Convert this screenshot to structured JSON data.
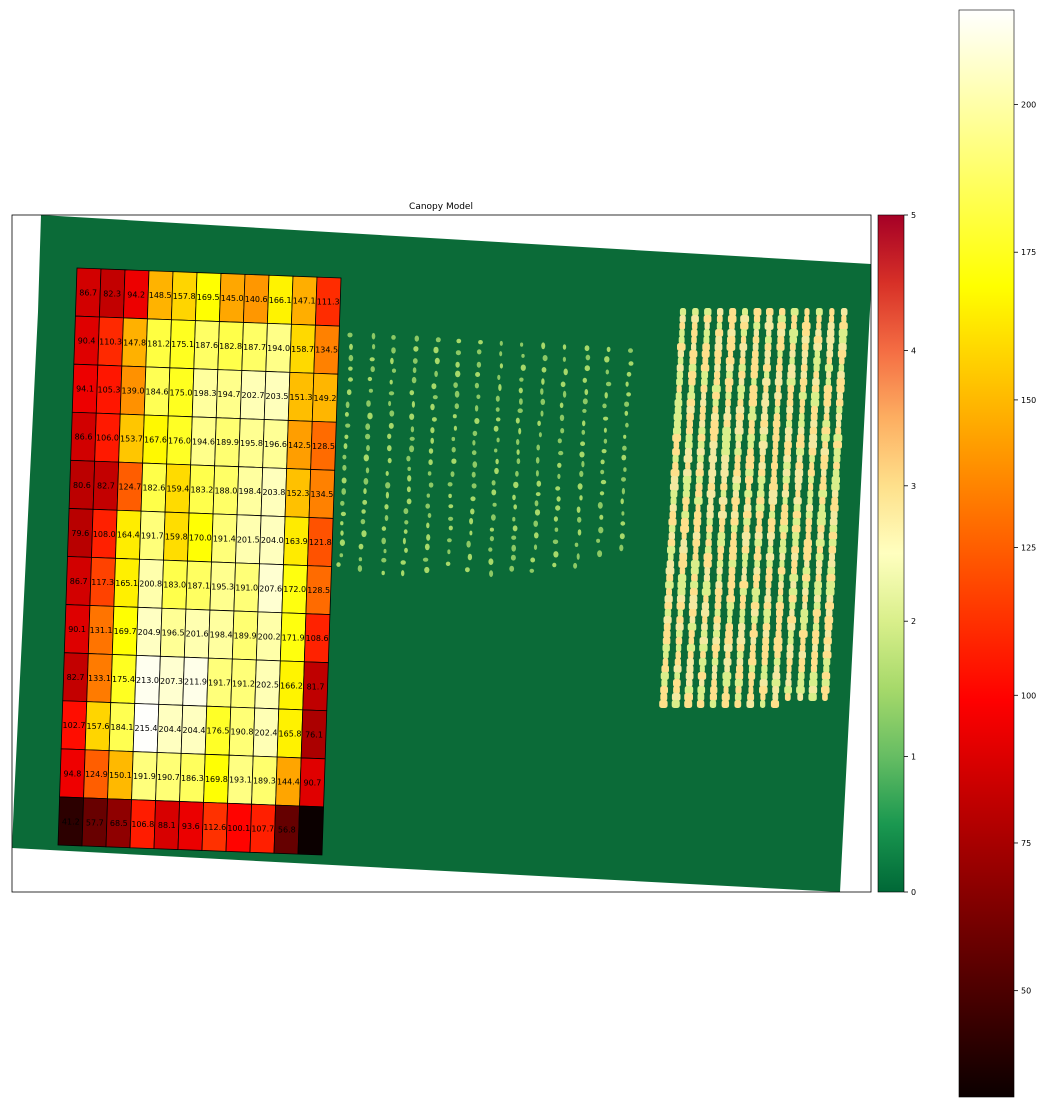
{
  "chart_data": {
    "type": "heatmap",
    "title": "Canopy Model",
    "background_raster": {
      "colormap": "RdYlGn_r",
      "base_color": "#0b6b38",
      "colorbar": {
        "min": 0,
        "max": 5,
        "ticks": [
          "0",
          "1",
          "2",
          "3",
          "4",
          "5"
        ]
      }
    },
    "grid_colormap": {
      "name": "hot",
      "min": 32,
      "max": 216,
      "ticks": [
        "50",
        "75",
        "100",
        "125",
        "150",
        "175",
        "200"
      ],
      "tick_values": [
        50,
        75,
        100,
        125,
        150,
        175,
        200
      ]
    },
    "grid": {
      "rows": 12,
      "cols": 11,
      "labels": [
        [
          "86.7",
          "82.3",
          "94.2",
          "148.5",
          "157.8",
          "169.5",
          "145.0",
          "140.6",
          "166.1",
          "147.1",
          "111.3"
        ],
        [
          "90.4",
          "110.3",
          "147.8",
          "181.2",
          "175.1",
          "187.6",
          "182.8",
          "187.7",
          "194.0",
          "158.7",
          "134.5"
        ],
        [
          "94.1",
          "105.3",
          "139.0",
          "184.6",
          "175.0",
          "198.3",
          "194.7",
          "202.7",
          "203.5",
          "151.3",
          "149.2"
        ],
        [
          "86.6",
          "106.0",
          "153.7",
          "167.6",
          "176.0",
          "194.6",
          "189.9",
          "195.8",
          "196.6",
          "142.5",
          "128.5"
        ],
        [
          "80.6",
          "82.7",
          "124.7",
          "182.6",
          "159.4",
          "183.2",
          "188.0",
          "198.4",
          "203.8",
          "152.3",
          "134.5"
        ],
        [
          "79.6",
          "108.0",
          "164.4",
          "191.7",
          "159.8",
          "170.0",
          "191.4",
          "201.5",
          "204.0",
          "163.9",
          "121.8"
        ],
        [
          "86.7",
          "117.3",
          "165.1",
          "200.8",
          "183.0",
          "187.1",
          "195.3",
          "191.0",
          "207.6",
          "172.0",
          "128.5"
        ],
        [
          "90.1",
          "131.1",
          "169.7",
          "204.9",
          "196.5",
          "201.6",
          "198.4",
          "189.9",
          "200.2",
          "171.9",
          "108.6"
        ],
        [
          "82.7",
          "133.1",
          "175.4",
          "213.0",
          "207.3",
          "211.9",
          "191.7",
          "191.2",
          "202.5",
          "166.2",
          "81.7"
        ],
        [
          "102.7",
          "157.6",
          "184.1",
          "215.4",
          "204.4",
          "204.4",
          "176.5",
          "190.8",
          "202.4",
          "165.8",
          "76.1"
        ],
        [
          "94.8",
          "124.9",
          "150.1",
          "191.9",
          "190.7",
          "186.3",
          "169.8",
          "193.1",
          "189.3",
          "144.4",
          "90.7"
        ],
        [
          "41.2",
          "57.7",
          "68.5",
          "106.8",
          "88.1",
          "93.6",
          "112.6",
          "100.1",
          "107.7",
          "56.8",
          ""
        ]
      ],
      "values": [
        [
          86.7,
          82.3,
          94.2,
          148.5,
          157.8,
          169.5,
          145.0,
          140.6,
          166.1,
          147.1,
          111.3
        ],
        [
          90.4,
          110.3,
          147.8,
          181.2,
          175.1,
          187.6,
          182.8,
          187.7,
          194.0,
          158.7,
          134.5
        ],
        [
          94.1,
          105.3,
          139.0,
          184.6,
          175.0,
          198.3,
          194.7,
          202.7,
          203.5,
          151.3,
          149.2
        ],
        [
          86.6,
          106.0,
          153.7,
          167.6,
          176.0,
          194.6,
          189.9,
          195.8,
          196.6,
          142.5,
          128.5
        ],
        [
          80.6,
          82.7,
          124.7,
          182.6,
          159.4,
          183.2,
          188.0,
          198.4,
          203.8,
          152.3,
          134.5
        ],
        [
          79.6,
          108.0,
          164.4,
          191.7,
          159.8,
          170.0,
          191.4,
          201.5,
          204.0,
          163.9,
          121.8
        ],
        [
          86.7,
          117.3,
          165.1,
          200.8,
          183.0,
          187.1,
          195.3,
          191.0,
          207.6,
          172.0,
          128.5
        ],
        [
          90.1,
          131.1,
          169.7,
          204.9,
          196.5,
          201.6,
          198.4,
          189.9,
          200.2,
          171.9,
          108.6
        ],
        [
          82.7,
          133.1,
          175.4,
          213.0,
          207.3,
          211.9,
          191.7,
          191.2,
          202.5,
          166.2,
          81.7
        ],
        [
          102.7,
          157.6,
          184.1,
          215.4,
          204.4,
          204.4,
          176.5,
          190.8,
          202.4,
          165.8,
          76.1
        ],
        [
          94.8,
          124.9,
          150.1,
          191.9,
          190.7,
          186.3,
          169.8,
          193.1,
          189.3,
          144.4,
          90.7
        ],
        [
          41.2,
          57.7,
          68.5,
          106.8,
          88.1,
          93.6,
          112.6,
          100.1,
          107.7,
          56.8,
          32.0
        ]
      ]
    }
  }
}
